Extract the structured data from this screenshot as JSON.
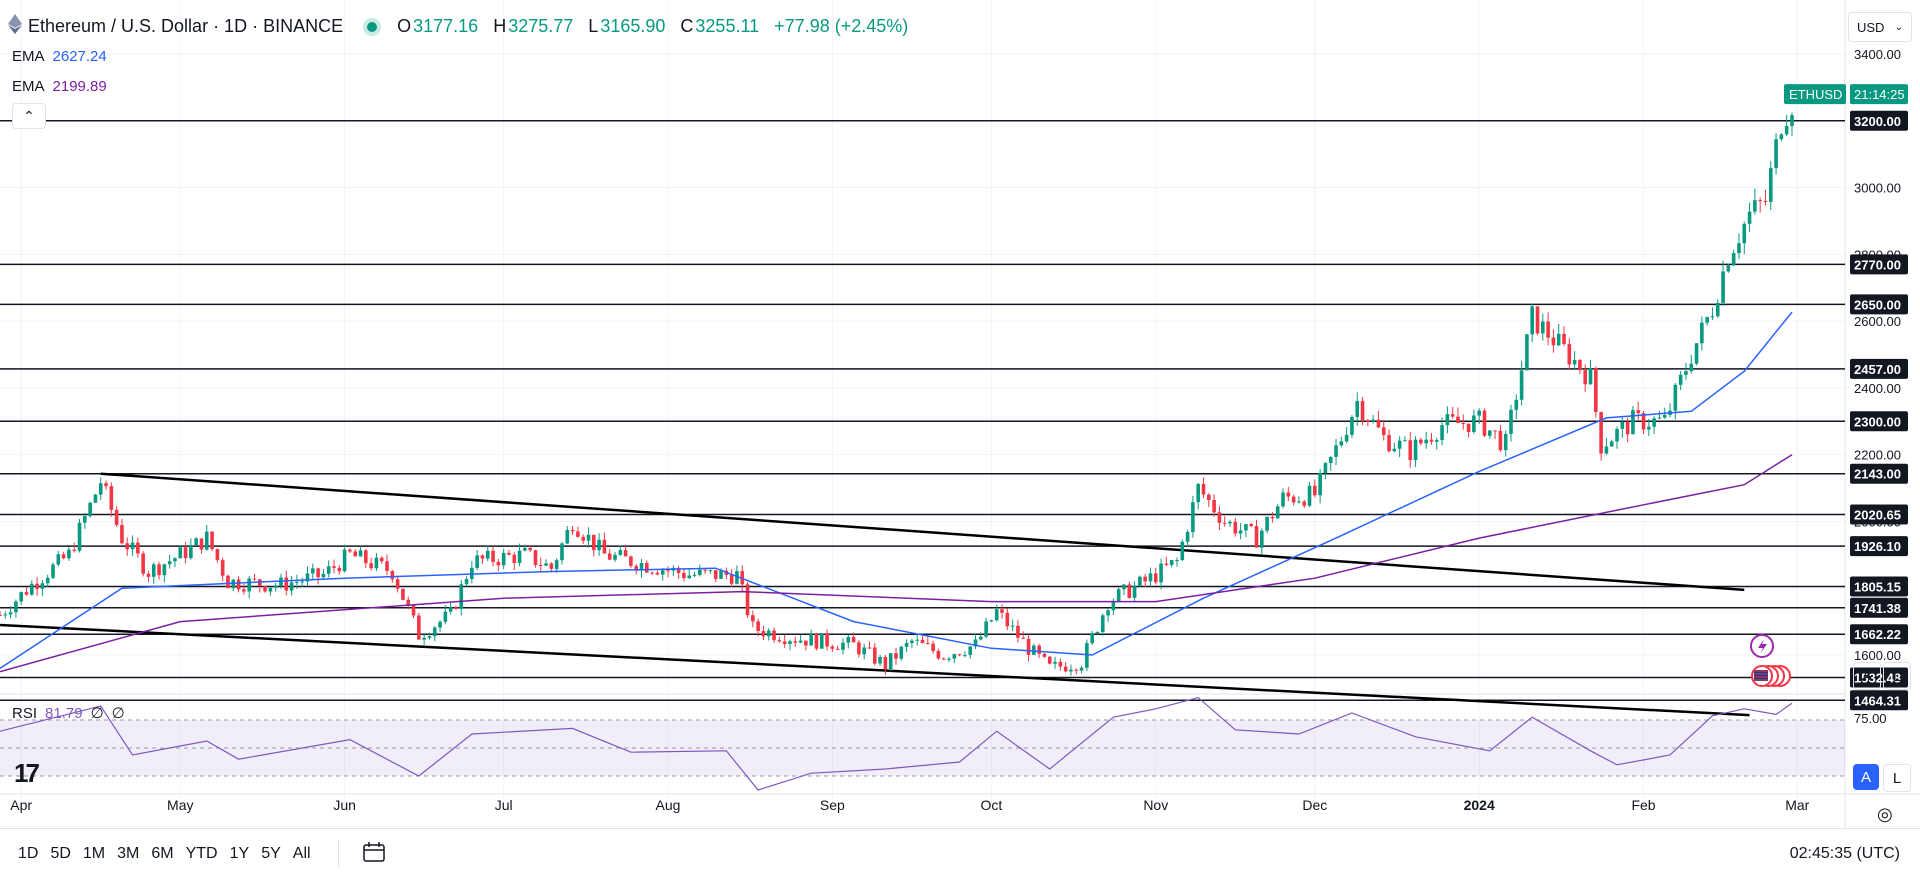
{
  "header": {
    "title": "Ethereum / U.S. Dollar · 1D · BINANCE",
    "ohlc": [
      {
        "label": "O",
        "value": "3177.16"
      },
      {
        "label": "H",
        "value": "3275.77"
      },
      {
        "label": "L",
        "value": "3165.90"
      },
      {
        "label": "C",
        "value": "3255.11"
      }
    ],
    "change": "+77.98 (+2.45%)"
  },
  "indicators": {
    "ema1": {
      "name": "EMA",
      "value": "2627.24",
      "color": "#2962ff"
    },
    "ema2": {
      "name": "EMA",
      "value": "2199.89",
      "color": "#7b1fa2"
    },
    "rsi": {
      "name": "RSI",
      "value": "81.79",
      "extra1": "∅",
      "extra2": "∅",
      "color": "#7e57c2"
    }
  },
  "currency": "USD",
  "symbol_tag": {
    "symbol": "ETHUSD",
    "countdown": "21:14:25"
  },
  "bottom_bar": {
    "ranges": [
      "1D",
      "5D",
      "1M",
      "3M",
      "6M",
      "YTD",
      "1Y",
      "5Y",
      "All"
    ],
    "clock": "02:45:35 (UTC)"
  },
  "axis_buttons": {
    "auto": "A",
    "log": "L"
  },
  "colors": {
    "up": "#089981",
    "down": "#f23645",
    "ema1": "#2962ff",
    "ema2": "#7b1fa2",
    "rsi": "#7e57c2",
    "level": "#131722"
  },
  "chart_data": {
    "type": "candlestick",
    "title": "Ethereum / U.S. Dollar · 1D · BINANCE",
    "y_axis": {
      "ticks": [
        1600,
        1800,
        2000,
        2200,
        2400,
        2600,
        2800,
        3000,
        3200,
        3400
      ],
      "range": [
        1400,
        3500
      ]
    },
    "x_axis": {
      "ticks": [
        "Apr",
        "May",
        "Jun",
        "Jul",
        "Aug",
        "Sep",
        "Oct",
        "Nov",
        "Dec",
        "2024",
        "Feb",
        "Mar"
      ],
      "range": [
        "2023-03-28",
        "2024-03-10"
      ]
    },
    "grid": true,
    "horizontal_levels": [
      3200.0,
      2770.0,
      2650.0,
      2457.0,
      2300.0,
      2143.0,
      2020.65,
      1926.1,
      1805.15,
      1741.38,
      1662.22,
      1532.48,
      1464.31
    ],
    "trendlines": [
      {
        "from": {
          "date": "2023-04-16",
          "price": 2143
        },
        "to": {
          "date": "2024-02-20",
          "price": 1795
        }
      },
      {
        "from": {
          "date": "2023-03-28",
          "price": 1690
        },
        "to": {
          "date": "2024-02-21",
          "price": 1420
        }
      }
    ],
    "price_path": [
      [
        "2023-03-28",
        1720
      ],
      [
        "2023-04-03",
        1810
      ],
      [
        "2023-04-10",
        1900
      ],
      [
        "2023-04-16",
        2120
      ],
      [
        "2023-04-20",
        1950
      ],
      [
        "2023-04-25",
        1850
      ],
      [
        "2023-05-01",
        1900
      ],
      [
        "2023-05-06",
        1950
      ],
      [
        "2023-05-10",
        1820
      ],
      [
        "2023-05-20",
        1810
      ],
      [
        "2023-05-28",
        1840
      ],
      [
        "2023-06-02",
        1900
      ],
      [
        "2023-06-10",
        1850
      ],
      [
        "2023-06-15",
        1660
      ],
      [
        "2023-06-21",
        1720
      ],
      [
        "2023-06-25",
        1880
      ],
      [
        "2023-07-05",
        1900
      ],
      [
        "2023-07-10",
        1860
      ],
      [
        "2023-07-14",
        2000
      ],
      [
        "2023-07-20",
        1900
      ],
      [
        "2023-07-28",
        1870
      ],
      [
        "2023-08-05",
        1840
      ],
      [
        "2023-08-14",
        1840
      ],
      [
        "2023-08-17",
        1680
      ],
      [
        "2023-08-25",
        1650
      ],
      [
        "2023-09-05",
        1630
      ],
      [
        "2023-09-11",
        1570
      ],
      [
        "2023-09-16",
        1640
      ],
      [
        "2023-09-22",
        1600
      ],
      [
        "2023-09-28",
        1630
      ],
      [
        "2023-10-02",
        1730
      ],
      [
        "2023-10-08",
        1620
      ],
      [
        "2023-10-12",
        1560
      ],
      [
        "2023-10-18",
        1580
      ],
      [
        "2023-10-23",
        1760
      ],
      [
        "2023-10-30",
        1820
      ],
      [
        "2023-11-05",
        1880
      ],
      [
        "2023-11-09",
        2100
      ],
      [
        "2023-11-14",
        2000
      ],
      [
        "2023-11-20",
        1950
      ],
      [
        "2023-11-25",
        2070
      ],
      [
        "2023-12-01",
        2080
      ],
      [
        "2023-12-06",
        2250
      ],
      [
        "2023-12-09",
        2360
      ],
      [
        "2023-12-14",
        2250
      ],
      [
        "2023-12-19",
        2210
      ],
      [
        "2023-12-25",
        2290
      ],
      [
        "2024-01-01",
        2300
      ],
      [
        "2024-01-06",
        2230
      ],
      [
        "2024-01-11",
        2610
      ],
      [
        "2024-01-16",
        2530
      ],
      [
        "2024-01-22",
        2430
      ],
      [
        "2024-01-24",
        2230
      ],
      [
        "2024-01-30",
        2300
      ],
      [
        "2024-02-05",
        2300
      ],
      [
        "2024-02-10",
        2500
      ],
      [
        "2024-02-14",
        2640
      ],
      [
        "2024-02-17",
        2800
      ],
      [
        "2024-02-21",
        2920
      ],
      [
        "2024-02-24",
        2960
      ],
      [
        "2024-02-27",
        3200
      ],
      [
        "2024-02-29",
        3255.11
      ]
    ],
    "series": [
      {
        "name": "EMA",
        "value_label": "2627.24",
        "path": [
          [
            "2023-03-28",
            1560
          ],
          [
            "2023-04-20",
            1800
          ],
          [
            "2023-06-01",
            1830
          ],
          [
            "2023-07-10",
            1850
          ],
          [
            "2023-08-10",
            1860
          ],
          [
            "2023-09-05",
            1700
          ],
          [
            "2023-10-01",
            1620
          ],
          [
            "2023-10-20",
            1600
          ],
          [
            "2023-11-10",
            1770
          ],
          [
            "2023-12-05",
            1950
          ],
          [
            "2024-01-01",
            2150
          ],
          [
            "2024-01-25",
            2310
          ],
          [
            "2024-02-10",
            2330
          ],
          [
            "2024-02-20",
            2450
          ],
          [
            "2024-02-29",
            2627
          ]
        ]
      },
      {
        "name": "EMA",
        "value_label": "2199.89",
        "path": [
          [
            "2023-03-28",
            1550
          ],
          [
            "2023-05-01",
            1700
          ],
          [
            "2023-07-01",
            1770
          ],
          [
            "2023-08-15",
            1790
          ],
          [
            "2023-10-01",
            1760
          ],
          [
            "2023-11-01",
            1760
          ],
          [
            "2023-12-01",
            1830
          ],
          [
            "2024-01-01",
            1950
          ],
          [
            "2024-02-01",
            2050
          ],
          [
            "2024-02-20",
            2110
          ],
          [
            "2024-02-29",
            2200
          ]
        ]
      }
    ],
    "rsi": {
      "value": 81.79,
      "levels": [
        70,
        50,
        30
      ],
      "axis_label": "75.00",
      "path": [
        [
          "2023-03-28",
          62
        ],
        [
          "2023-04-16",
          80
        ],
        [
          "2023-04-22",
          45
        ],
        [
          "2023-05-06",
          55
        ],
        [
          "2023-05-12",
          42
        ],
        [
          "2023-06-02",
          56
        ],
        [
          "2023-06-15",
          30
        ],
        [
          "2023-06-25",
          60
        ],
        [
          "2023-07-14",
          64
        ],
        [
          "2023-07-25",
          47
        ],
        [
          "2023-08-12",
          48
        ],
        [
          "2023-08-18",
          20
        ],
        [
          "2023-08-28",
          32
        ],
        [
          "2023-09-11",
          35
        ],
        [
          "2023-09-25",
          40
        ],
        [
          "2023-10-02",
          62
        ],
        [
          "2023-10-12",
          35
        ],
        [
          "2023-10-24",
          72
        ],
        [
          "2023-11-01",
          78
        ],
        [
          "2023-11-09",
          86
        ],
        [
          "2023-11-16",
          63
        ],
        [
          "2023-11-28",
          60
        ],
        [
          "2023-12-08",
          75
        ],
        [
          "2023-12-20",
          58
        ],
        [
          "2024-01-03",
          48
        ],
        [
          "2024-01-11",
          72
        ],
        [
          "2024-01-22",
          48
        ],
        [
          "2024-01-27",
          38
        ],
        [
          "2024-02-06",
          45
        ],
        [
          "2024-02-14",
          73
        ],
        [
          "2024-02-20",
          78
        ],
        [
          "2024-02-26",
          74
        ],
        [
          "2024-02-29",
          82
        ]
      ]
    }
  }
}
